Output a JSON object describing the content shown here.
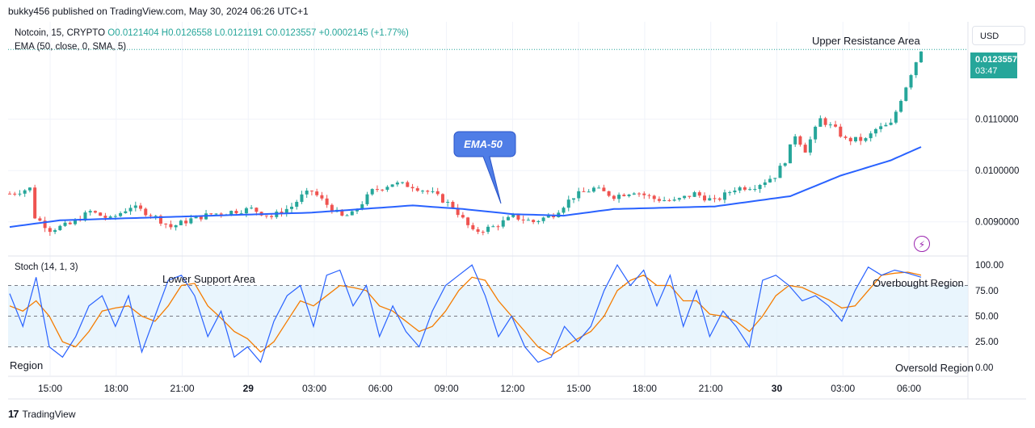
{
  "header": {
    "publisher_line": "bukky456 published on TradingView.com, May 30, 2024 06:26 UTC+1"
  },
  "legend": {
    "symbol": "Notcoin, 15, CRYPTO",
    "ohlc": "O0.0121404 H0.0126558 L0.0121191 C0.0123557 +0.0002145 (+1.77%)",
    "ema": "EMA (50, close, 0, SMA, 5)",
    "stoch": "Stoch (14, 1, 3)"
  },
  "price_scale": {
    "currency": "USD",
    "current_price": "0.0123557",
    "countdown": "03:47"
  },
  "footer": {
    "brand": "TradingView",
    "logo_glyph": "17"
  },
  "icons": {
    "alert": "lightning-icon"
  },
  "colors": {
    "bull": "#26a69a",
    "bear": "#ef5350",
    "ema": "#2962ff",
    "k": "#2962ff",
    "d": "#f57c00",
    "band": "#e3f2fd"
  },
  "chart_data": [
    {
      "type": "candlestick",
      "title": "Notcoin, 15, CRYPTO",
      "ylim": [
        0.00835,
        0.0129
      ],
      "yticks": [
        "0.0090000",
        "0.0100000",
        "0.0110000"
      ],
      "ytick_values": [
        0.009,
        0.01,
        0.011
      ],
      "xticks": [
        "15:00",
        "18:00",
        "21:00",
        "29",
        "03:00",
        "06:00",
        "09:00",
        "12:00",
        "15:00",
        "18:00",
        "21:00",
        "30",
        "03:00",
        "06:00"
      ],
      "close_keypoints": [
        [
          0,
          0.00955
        ],
        [
          4,
          0.00965
        ],
        [
          5,
          0.0091
        ],
        [
          8,
          0.00885
        ],
        [
          12,
          0.00895
        ],
        [
          16,
          0.0092
        ],
        [
          20,
          0.00905
        ],
        [
          24,
          0.0093
        ],
        [
          28,
          0.00915
        ],
        [
          32,
          0.0089
        ],
        [
          36,
          0.00905
        ],
        [
          40,
          0.00915
        ],
        [
          44,
          0.0092
        ],
        [
          48,
          0.00925
        ],
        [
          52,
          0.0091
        ],
        [
          56,
          0.0093
        ],
        [
          58,
          0.0095
        ],
        [
          60,
          0.0096
        ],
        [
          64,
          0.00925
        ],
        [
          66,
          0.0091
        ],
        [
          68,
          0.00915
        ],
        [
          72,
          0.0096
        ],
        [
          76,
          0.00975
        ],
        [
          80,
          0.0097
        ],
        [
          84,
          0.00955
        ],
        [
          88,
          0.0093
        ],
        [
          92,
          0.0088
        ],
        [
          96,
          0.0089
        ],
        [
          100,
          0.0091
        ],
        [
          104,
          0.009
        ],
        [
          108,
          0.00915
        ],
        [
          112,
          0.0095
        ],
        [
          116,
          0.00965
        ],
        [
          120,
          0.0095
        ],
        [
          124,
          0.0096
        ],
        [
          128,
          0.00945
        ],
        [
          132,
          0.0094
        ],
        [
          136,
          0.00955
        ],
        [
          140,
          0.0094
        ],
        [
          144,
          0.00965
        ],
        [
          148,
          0.0097
        ],
        [
          152,
          0.0099
        ],
        [
          154,
          0.0102
        ],
        [
          156,
          0.0107
        ],
        [
          158,
          0.0104
        ],
        [
          161,
          0.011
        ],
        [
          164,
          0.0108
        ],
        [
          166,
          0.0106
        ],
        [
          170,
          0.0106
        ],
        [
          172,
          0.0108
        ],
        [
          175,
          0.0109
        ],
        [
          177,
          0.0114
        ],
        [
          179,
          0.0119
        ],
        [
          181,
          0.01236
        ]
      ],
      "ema_keypoints": [
        [
          0,
          0.0089
        ],
        [
          10,
          0.00903
        ],
        [
          40,
          0.00912
        ],
        [
          60,
          0.00918
        ],
        [
          80,
          0.00932
        ],
        [
          90,
          0.00925
        ],
        [
          100,
          0.00915
        ],
        [
          110,
          0.00912
        ],
        [
          120,
          0.00925
        ],
        [
          140,
          0.0093
        ],
        [
          155,
          0.0095
        ],
        [
          165,
          0.0099
        ],
        [
          175,
          0.0102
        ],
        [
          181,
          0.01046
        ]
      ],
      "annotations": [
        "EMA-50",
        "Upper Resistance Area"
      ]
    },
    {
      "type": "line",
      "title": "Stoch (14, 1, 3)",
      "ylim": [
        -8,
        108
      ],
      "yticks": [
        "100.00",
        "75.00",
        "50.00",
        "25.00",
        "0.00"
      ],
      "ytick_values": [
        100,
        75,
        50,
        25,
        0
      ],
      "band": [
        20,
        80
      ],
      "series": [
        {
          "name": "%K",
          "values": [
            72,
            40,
            88,
            20,
            10,
            30,
            60,
            70,
            40,
            70,
            15,
            50,
            85,
            90,
            70,
            30,
            55,
            10,
            20,
            5,
            45,
            70,
            80,
            40,
            90,
            95,
            60,
            80,
            30,
            60,
            35,
            20,
            55,
            80,
            90,
            100,
            70,
            30,
            50,
            20,
            5,
            10,
            40,
            25,
            40,
            75,
            100,
            80,
            95,
            60,
            90,
            40,
            75,
            30,
            55,
            40,
            20,
            85,
            90,
            80,
            65,
            70,
            60,
            45,
            75,
            98,
            90,
            95,
            92,
            88
          ]
        },
        {
          "name": "%D",
          "values": [
            60,
            55,
            65,
            50,
            25,
            20,
            35,
            55,
            58,
            60,
            50,
            45,
            60,
            80,
            82,
            60,
            48,
            35,
            28,
            15,
            25,
            45,
            65,
            60,
            70,
            80,
            78,
            75,
            60,
            55,
            45,
            35,
            40,
            55,
            75,
            88,
            85,
            65,
            50,
            35,
            20,
            12,
            20,
            28,
            35,
            50,
            75,
            85,
            90,
            80,
            80,
            65,
            65,
            52,
            50,
            45,
            35,
            50,
            70,
            80,
            78,
            72,
            66,
            58,
            60,
            75,
            90,
            92,
            93,
            90
          ]
        }
      ],
      "annotations": [
        "Lower Support Area",
        "Overbought Region",
        "Region",
        "Oversold Region"
      ]
    }
  ]
}
